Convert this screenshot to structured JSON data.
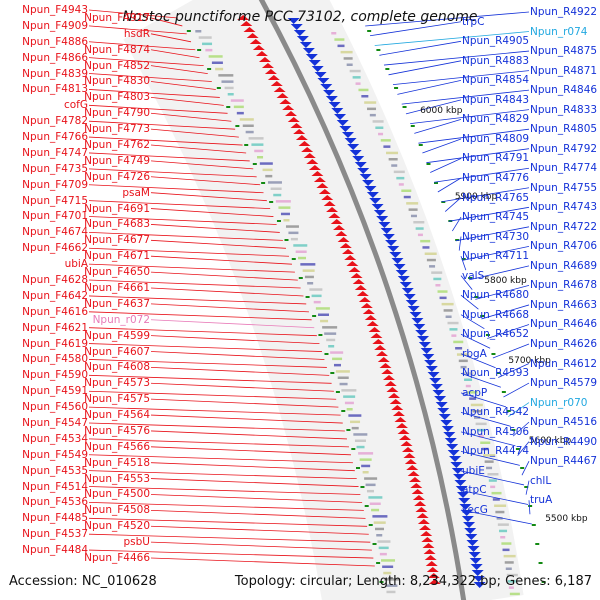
{
  "title": "Nostoc punctiforme PCC 73102, complete genome",
  "footer": {
    "accession": "Accession: NC_010628",
    "summary": "Topology: circular; Length: 8,234,322 bp; Genes: 6,187"
  },
  "colors": {
    "minus_strand": "#e8121a",
    "plus_strand": "#1432d8",
    "rna_label": "#22a8e0",
    "rna_label_minus": "#e87ab8",
    "backbone": "#8a8a8a",
    "tick": "#138a13"
  },
  "kbp_ticks": [
    "6000 kbp",
    "5900 kbp",
    "5800 kbp",
    "5700 kbp",
    "5600 kbp",
    "5500 kbp"
  ],
  "left_labels": [
    {
      "text": "Npun_F4943",
      "color": "red"
    },
    {
      "text": "Npun_F4917",
      "color": "red"
    },
    {
      "text": "Npun_F4909",
      "color": "red"
    },
    {
      "text": "hsdR",
      "color": "red"
    },
    {
      "text": "Npun_F4886",
      "color": "red"
    },
    {
      "text": "Npun_F4874",
      "color": "red"
    },
    {
      "text": "Npun_F4866",
      "color": "red"
    },
    {
      "text": "Npun_F4852",
      "color": "red"
    },
    {
      "text": "Npun_F4839",
      "color": "red"
    },
    {
      "text": "Npun_F4830",
      "color": "red"
    },
    {
      "text": "Npun_F4813",
      "color": "red"
    },
    {
      "text": "Npun_F4803",
      "color": "red"
    },
    {
      "text": "cofG",
      "color": "red"
    },
    {
      "text": "Npun_F4790",
      "color": "red"
    },
    {
      "text": "Npun_F4782",
      "color": "red"
    },
    {
      "text": "Npun_F4773",
      "color": "red"
    },
    {
      "text": "Npun_F4766",
      "color": "red"
    },
    {
      "text": "Npun_F4762",
      "color": "red"
    },
    {
      "text": "Npun_F4747",
      "color": "red"
    },
    {
      "text": "Npun_F4749",
      "color": "red"
    },
    {
      "text": "Npun_F4735",
      "color": "red"
    },
    {
      "text": "Npun_F4726",
      "color": "red"
    },
    {
      "text": "Npun_F4709",
      "color": "red"
    },
    {
      "text": "psaM",
      "color": "red"
    },
    {
      "text": "Npun_F4715",
      "color": "red"
    },
    {
      "text": "Npun_F4691",
      "color": "red"
    },
    {
      "text": "Npun_F4701",
      "color": "red"
    },
    {
      "text": "Npun_F4683",
      "color": "red"
    },
    {
      "text": "Npun_F4674",
      "color": "red"
    },
    {
      "text": "Npun_F4677",
      "color": "red"
    },
    {
      "text": "Npun_F4662",
      "color": "red"
    },
    {
      "text": "Npun_F4671",
      "color": "red"
    },
    {
      "text": "ubiA",
      "color": "red"
    },
    {
      "text": "Npun_F4650",
      "color": "red"
    },
    {
      "text": "Npun_F4628",
      "color": "red"
    },
    {
      "text": "Npun_F4661",
      "color": "red"
    },
    {
      "text": "Npun_F4642",
      "color": "red"
    },
    {
      "text": "Npun_F4637",
      "color": "red"
    },
    {
      "text": "Npun_F4616",
      "color": "red"
    },
    {
      "text": "Npun_r072",
      "color": "pink"
    },
    {
      "text": "Npun_F4621",
      "color": "red"
    },
    {
      "text": "Npun_F4599",
      "color": "red"
    },
    {
      "text": "Npun_F4619",
      "color": "red"
    },
    {
      "text": "Npun_F4607",
      "color": "red"
    },
    {
      "text": "Npun_F4580",
      "color": "red"
    },
    {
      "text": "Npun_F4608",
      "color": "red"
    },
    {
      "text": "Npun_F4590",
      "color": "red"
    },
    {
      "text": "Npun_F4573",
      "color": "red"
    },
    {
      "text": "Npun_F4591",
      "color": "red"
    },
    {
      "text": "Npun_F4575",
      "color": "red"
    },
    {
      "text": "Npun_F4560",
      "color": "red"
    },
    {
      "text": "Npun_F4564",
      "color": "red"
    },
    {
      "text": "Npun_F4547",
      "color": "red"
    },
    {
      "text": "Npun_F4576",
      "color": "red"
    },
    {
      "text": "Npun_F4534",
      "color": "red"
    },
    {
      "text": "Npun_F4566",
      "color": "red"
    },
    {
      "text": "Npun_F4549",
      "color": "red"
    },
    {
      "text": "Npun_F4518",
      "color": "red"
    },
    {
      "text": "Npun_F4535",
      "color": "red"
    },
    {
      "text": "Npun_F4553",
      "color": "red"
    },
    {
      "text": "Npun_F4514",
      "color": "red"
    },
    {
      "text": "Npun_F4500",
      "color": "red"
    },
    {
      "text": "Npun_F4536",
      "color": "red"
    },
    {
      "text": "Npun_F4508",
      "color": "red"
    },
    {
      "text": "Npun_F4485",
      "color": "red"
    },
    {
      "text": "Npun_F4520",
      "color": "red"
    },
    {
      "text": "Npun_F4537",
      "color": "red"
    },
    {
      "text": "psbU",
      "color": "red"
    },
    {
      "text": "Npun_F4484",
      "color": "red"
    },
    {
      "text": "Npun_F4466",
      "color": "red"
    }
  ],
  "right_labels": [
    {
      "text": "Npun_R4922",
      "color": "blue"
    },
    {
      "text": "trpC",
      "color": "blue"
    },
    {
      "text": "Npun_r074",
      "color": "cyan"
    },
    {
      "text": "Npun_R4905",
      "color": "blue"
    },
    {
      "text": "Npun_R4875",
      "color": "blue"
    },
    {
      "text": "Npun_R4883",
      "color": "blue"
    },
    {
      "text": "Npun_R4871",
      "color": "blue"
    },
    {
      "text": "Npun_R4854",
      "color": "blue"
    },
    {
      "text": "Npun_R4846",
      "color": "blue"
    },
    {
      "text": "Npun_R4843",
      "color": "blue"
    },
    {
      "text": "Npun_R4833",
      "color": "blue"
    },
    {
      "text": "Npun_R4829",
      "color": "blue"
    },
    {
      "text": "Npun_R4805",
      "color": "blue"
    },
    {
      "text": "Npun_R4809",
      "color": "blue"
    },
    {
      "text": "Npun_R4792",
      "color": "blue"
    },
    {
      "text": "Npun_R4791",
      "color": "blue"
    },
    {
      "text": "Npun_R4774",
      "color": "blue"
    },
    {
      "text": "Npun_R4776",
      "color": "blue"
    },
    {
      "text": "Npun_R4755",
      "color": "blue"
    },
    {
      "text": "Npun_R4765",
      "color": "blue"
    },
    {
      "text": "Npun_R4743",
      "color": "blue"
    },
    {
      "text": "Npun_R4745",
      "color": "blue"
    },
    {
      "text": "Npun_R4722",
      "color": "blue"
    },
    {
      "text": "Npun_R4730",
      "color": "blue"
    },
    {
      "text": "Npun_R4706",
      "color": "blue"
    },
    {
      "text": "Npun_R4711",
      "color": "blue"
    },
    {
      "text": "Npun_R4689",
      "color": "blue"
    },
    {
      "text": "valS",
      "color": "blue"
    },
    {
      "text": "Npun_R4678",
      "color": "blue"
    },
    {
      "text": "Npun_R4680",
      "color": "blue"
    },
    {
      "text": "Npun_R4663",
      "color": "blue"
    },
    {
      "text": "Npun_R4668",
      "color": "blue"
    },
    {
      "text": "Npun_R4646",
      "color": "blue"
    },
    {
      "text": "Npun_R4652",
      "color": "blue"
    },
    {
      "text": "Npun_R4626",
      "color": "blue"
    },
    {
      "text": "rbgA",
      "color": "blue"
    },
    {
      "text": "Npun_R4612",
      "color": "blue"
    },
    {
      "text": "Npun_R4593",
      "color": "blue"
    },
    {
      "text": "Npun_R4579",
      "color": "blue"
    },
    {
      "text": "acpP",
      "color": "blue"
    },
    {
      "text": "Npun_r070",
      "color": "cyan"
    },
    {
      "text": "Npun_R4542",
      "color": "blue"
    },
    {
      "text": "Npun_R4516",
      "color": "blue"
    },
    {
      "text": "Npun_R4506",
      "color": "blue"
    },
    {
      "text": "Npun_R4490",
      "color": "blue"
    },
    {
      "text": "Npun_R4474",
      "color": "blue"
    },
    {
      "text": "Npun_R4467",
      "color": "blue"
    },
    {
      "text": "ubiE",
      "color": "blue"
    },
    {
      "text": "chlL",
      "color": "blue"
    },
    {
      "text": "atpC",
      "color": "blue"
    },
    {
      "text": "truA",
      "color": "blue"
    },
    {
      "text": "secG",
      "color": "blue"
    }
  ]
}
